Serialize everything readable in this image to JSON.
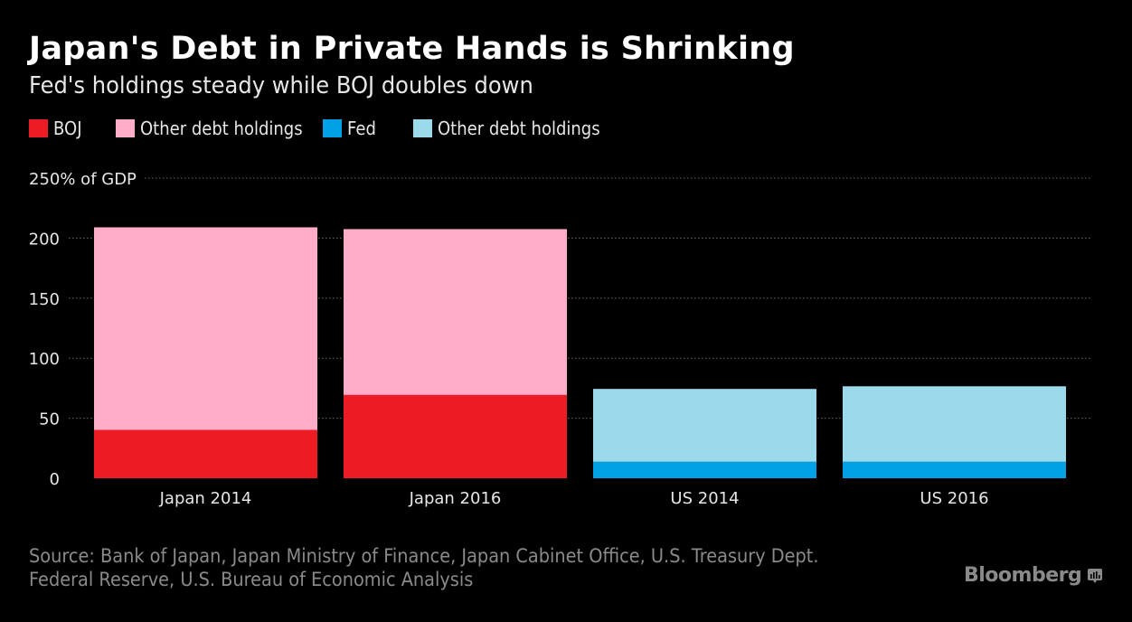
{
  "chart_data": {
    "type": "bar",
    "stacked": true,
    "title": "Japan's Debt in Private Hands is Shrinking",
    "subtitle": "Fed's holdings steady while BOJ doubles down",
    "xlabel": "",
    "ylabel": "% of GDP",
    "y_unit_label": "250% of GDP",
    "ylim": [
      0,
      250
    ],
    "yticks": [
      0,
      50,
      100,
      150,
      200,
      250
    ],
    "ytick_labels": [
      "0",
      "50",
      "100",
      "150",
      "200",
      "250% of GDP"
    ],
    "grid": true,
    "legend_position": "top-left",
    "categories": [
      "Japan 2014",
      "Japan 2016",
      "US 2014",
      "US 2016"
    ],
    "series": [
      {
        "name": "BOJ",
        "color": "#ED1C24",
        "values": [
          40.3,
          69.4,
          null,
          null
        ]
      },
      {
        "name": "Other debt holdings",
        "color": "#FFADC9",
        "values": [
          168.7,
          138.1,
          null,
          null
        ]
      },
      {
        "name": "Fed",
        "color": "#00A1E4",
        "values": [
          null,
          null,
          13.7,
          13.7
        ]
      },
      {
        "name": "Other debt holdings",
        "color": "#9ADAEB",
        "values": [
          null,
          null,
          60.7,
          62.9
        ]
      }
    ],
    "totals": [
      209.0,
      207.5,
      74.4,
      76.6
    ],
    "source": [
      "Source: Bank of Japan, Japan Ministry of Finance, Japan Cabinet Office, U.S. Treasury Dept.",
      "Federal Reserve, U.S. Bureau of Economic Analysis"
    ]
  },
  "header": {
    "title": "Japan's Debt in Private Hands is Shrinking",
    "subtitle": "Fed's holdings steady while BOJ doubles down"
  },
  "legend": [
    {
      "label": "BOJ",
      "color": "#ED1C24"
    },
    {
      "label": "Other debt holdings",
      "color": "#FFADC9"
    },
    {
      "label": "Fed",
      "color": "#00A1E4"
    },
    {
      "label": "Other debt holdings",
      "color": "#9ADAEB"
    }
  ],
  "footer": {
    "source_line1": "Source: Bank of Japan, Japan Ministry of Finance, Japan Cabinet Office, U.S. Treasury Dept.",
    "source_line2": "Federal Reserve, U.S. Bureau of Economic Analysis",
    "brand": "Bloomberg",
    "brand_icon": "bloomberg-chart-icon"
  }
}
